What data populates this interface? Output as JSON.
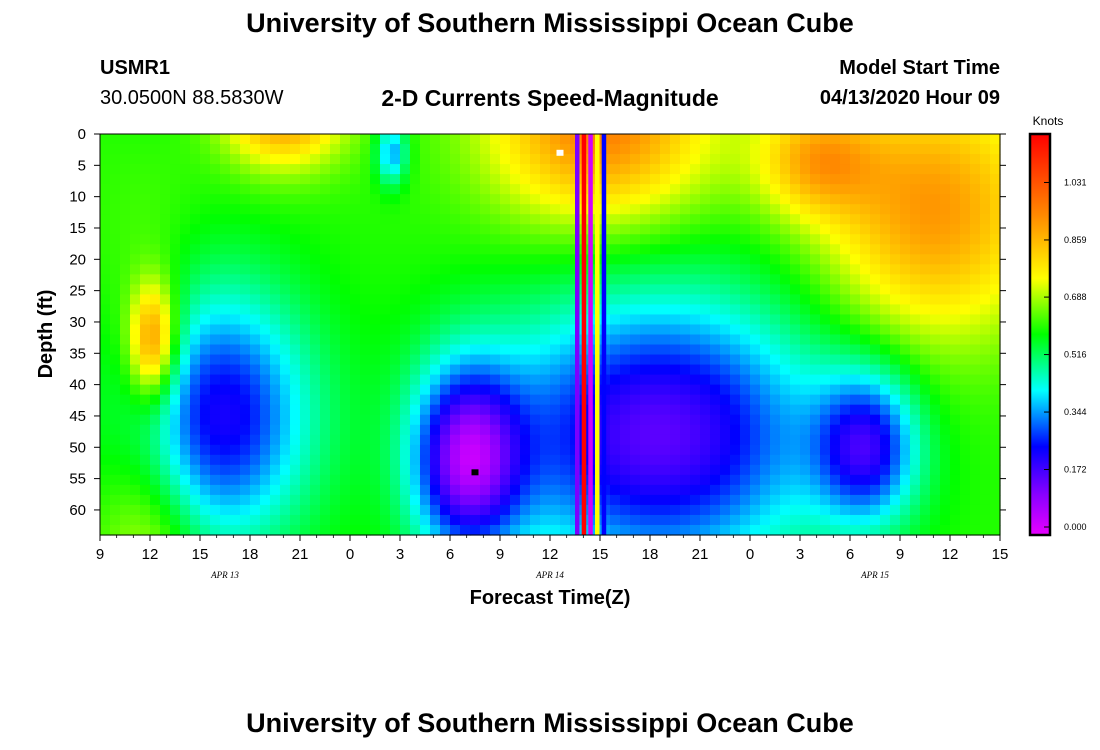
{
  "page": {
    "title": "University of Southern Mississippi Ocean Cube",
    "footer_title": "University of Southern Mississippi Ocean Cube"
  },
  "header": {
    "station": "USMR1",
    "location": "30.0500N 88.5830W",
    "subtitle": "2-D Currents Speed-Magnitude",
    "start_label": "Model Start Time",
    "start_value": "04/13/2020 Hour 09"
  },
  "chart_data": {
    "type": "heatmap",
    "title": "2-D Currents Speed-Magnitude",
    "xlabel": "Forecast Time(Z)",
    "ylabel": "Depth (ft)",
    "x_ticks": [
      "9",
      "12",
      "15",
      "18",
      "21",
      "0",
      "3",
      "6",
      "9",
      "12",
      "15",
      "18",
      "21",
      "0",
      "3",
      "6",
      "9",
      "12",
      "15"
    ],
    "x_range_hours": [
      0,
      54
    ],
    "x_tick_step_hours": 3,
    "date_labels": [
      {
        "label": "APR 13",
        "hour": 7.5
      },
      {
        "label": "APR 14",
        "hour": 27
      },
      {
        "label": "APR 15",
        "hour": 46.5
      }
    ],
    "y_ticks": [
      0,
      5,
      10,
      15,
      20,
      25,
      30,
      35,
      40,
      45,
      50,
      55,
      60
    ],
    "y_range_ft": [
      0,
      64
    ],
    "colorbar": {
      "units": "Knots",
      "ticks": [
        "1.031",
        "0.859",
        "0.688",
        "0.516",
        "0.344",
        "0.172",
        "0.000"
      ],
      "range": [
        0.0,
        1.2
      ]
    },
    "markers": [
      {
        "hour": 27.6,
        "depth": 3,
        "color": "#ffffff"
      },
      {
        "hour": 22.5,
        "depth": 54,
        "color": "#000000"
      }
    ]
  }
}
